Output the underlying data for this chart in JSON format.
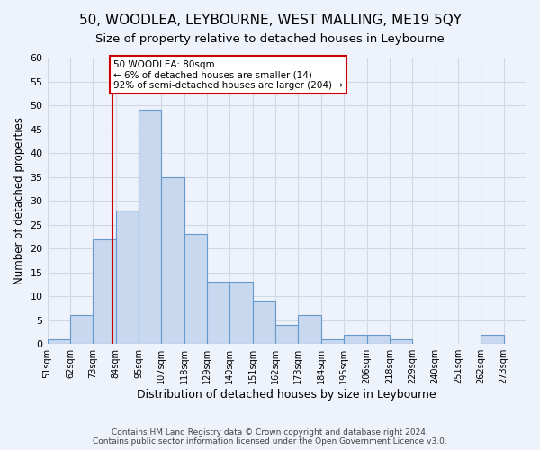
{
  "title": "50, WOODLEA, LEYBOURNE, WEST MALLING, ME19 5QY",
  "subtitle": "Size of property relative to detached houses in Leybourne",
  "xlabel": "Distribution of detached houses by size in Leybourne",
  "ylabel": "Number of detached properties",
  "footer_line1": "Contains HM Land Registry data © Crown copyright and database right 2024.",
  "footer_line2": "Contains public sector information licensed under the Open Government Licence v3.0.",
  "bin_labels": [
    "51sqm",
    "62sqm",
    "73sqm",
    "84sqm",
    "95sqm",
    "107sqm",
    "118sqm",
    "129sqm",
    "140sqm",
    "151sqm",
    "162sqm",
    "173sqm",
    "184sqm",
    "195sqm",
    "206sqm",
    "218sqm",
    "229sqm",
    "240sqm",
    "251sqm",
    "262sqm",
    "273sqm"
  ],
  "counts": [
    1,
    6,
    22,
    28,
    49,
    35,
    23,
    13,
    13,
    9,
    4,
    6,
    1,
    2,
    2,
    1,
    0,
    0,
    0,
    2,
    0
  ],
  "bar_color": "#c8d8ee",
  "bar_edge_color": "#6699cc",
  "red_line_bin": 2.85,
  "red_line_color": "#cc0000",
  "annotation_line1": "50 WOODLEA: 80sqm",
  "annotation_line2": "← 6% of detached houses are smaller (14)",
  "annotation_line3": "92% of semi-detached houses are larger (204) →",
  "annotation_box_color": "#ffffff",
  "annotation_box_edge": "#cc0000",
  "ylim": [
    0,
    60
  ],
  "yticks": [
    0,
    5,
    10,
    15,
    20,
    25,
    30,
    35,
    40,
    45,
    50,
    55,
    60
  ],
  "grid_color": "#d0d8e8",
  "background_color": "#eef2fa",
  "title_fontsize": 11,
  "subtitle_fontsize": 9.5,
  "figwidth": 6.0,
  "figheight": 5.0
}
